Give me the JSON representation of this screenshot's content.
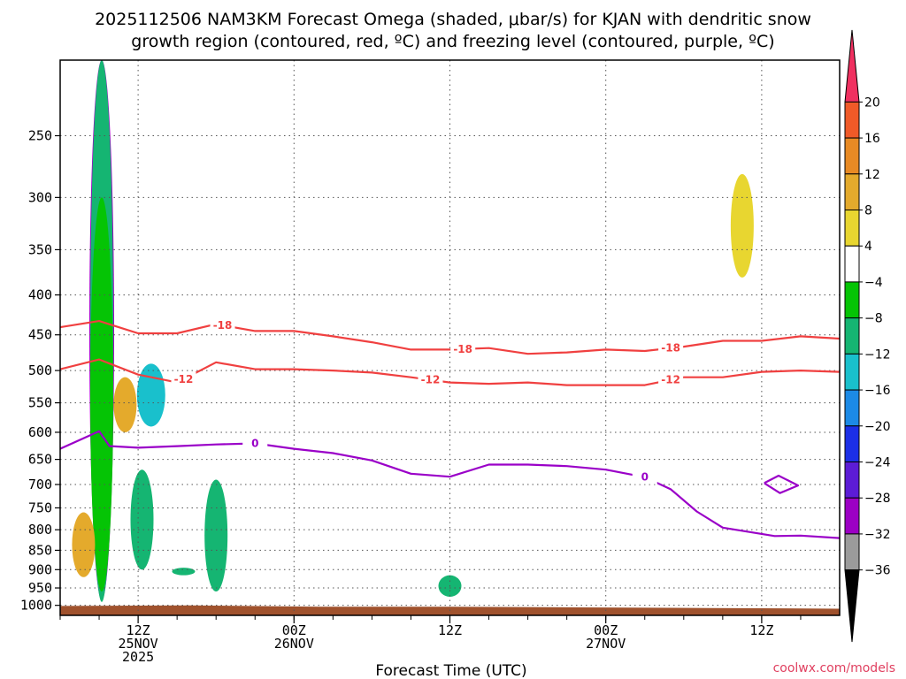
{
  "chart_data": {
    "type": "heatmap",
    "title": "2025112506 NAM3KM Forecast Omega (shaded, μbar/s) for KJAN with dendritic snow",
    "subtitle": "growth region (contoured, red, ºC) and freezing level (contoured, purple, ºC)",
    "xlabel": "Forecast Time (UTC)",
    "ylabel": "",
    "y_axis": {
      "scale": "log",
      "inverted": true,
      "ylim": [
        1030,
        200
      ],
      "unit": "hPa",
      "ticks": [
        250,
        300,
        350,
        400,
        450,
        500,
        550,
        600,
        650,
        700,
        750,
        800,
        850,
        900,
        950,
        1000
      ]
    },
    "x_axis": {
      "xlim": [
        0,
        60
      ],
      "ticks": [
        {
          "hour": 6,
          "lines": [
            "12Z",
            "25NOV",
            "2025"
          ]
        },
        {
          "hour": 18,
          "lines": [
            "00Z",
            "26NOV"
          ]
        },
        {
          "hour": 30,
          "lines": [
            "12Z"
          ]
        },
        {
          "hour": 42,
          "lines": [
            "00Z",
            "27NOV"
          ]
        },
        {
          "hour": 54,
          "lines": [
            "12Z"
          ]
        }
      ],
      "minor_hours": [
        0,
        3,
        6,
        9,
        12,
        15,
        18,
        21,
        24,
        27,
        30,
        33,
        36,
        39,
        42,
        45,
        48,
        51,
        54,
        57
      ]
    },
    "grid": true,
    "colorbar": {
      "unit": "μbar/s",
      "levels": [
        -36,
        -32,
        -28,
        -24,
        -20,
        -16,
        -12,
        -8,
        -4,
        4,
        8,
        12,
        16,
        20
      ],
      "colors": [
        "#000000",
        "#9b9b9b",
        "#9c00c4",
        "#5c1cd6",
        "#1c2fe6",
        "#1c8ae6",
        "#19c0cc",
        "#15b572",
        "#05c405",
        "#ffffff",
        "#e8d630",
        "#e4aa2c",
        "#e88a24",
        "#f05a28",
        "#f03060",
        "#e0207a"
      ],
      "placement": "right"
    },
    "omega_regions": [
      {
        "hour": 3.2,
        "p_top": 205,
        "p_bottom": 975,
        "value": -36
      },
      {
        "hour": 3.2,
        "p_top": 200,
        "p_bottom": 985,
        "value": -28
      },
      {
        "hour": 3.2,
        "p_top": 200,
        "p_bottom": 990,
        "value": -8
      },
      {
        "hour": 3.2,
        "p_top": 300,
        "p_bottom": 960,
        "value": -4
      },
      {
        "hour": 12.0,
        "p_top": 760,
        "p_bottom": 925,
        "value": -36
      },
      {
        "hour": 12.0,
        "p_top": 690,
        "p_bottom": 960,
        "value": -8
      },
      {
        "hour": 7.0,
        "p_top": 490,
        "p_bottom": 590,
        "value": -12
      },
      {
        "hour": 6.3,
        "p_top": 670,
        "p_bottom": 900,
        "value": -8
      },
      {
        "hour": 30.0,
        "p_top": 915,
        "p_bottom": 975,
        "value": -8
      },
      {
        "hour": 9.5,
        "p_top": 895,
        "p_bottom": 915,
        "value": -8
      },
      {
        "hour": 5.0,
        "p_top": 510,
        "p_bottom": 600,
        "value": 12
      },
      {
        "hour": 1.8,
        "p_top": 760,
        "p_bottom": 920,
        "value": 12
      },
      {
        "hour": 5.0,
        "p_top": 200,
        "p_bottom": 300,
        "value": 4
      },
      {
        "hour": 9.8,
        "p_top": 265,
        "p_bottom": 310,
        "value": 4
      },
      {
        "hour": 53.0,
        "p_top": 240,
        "p_bottom": 520,
        "value": 4
      },
      {
        "hour": 52.5,
        "p_top": 280,
        "p_bottom": 380,
        "value": 8
      },
      {
        "hour": 47.0,
        "p_top": 375,
        "p_bottom": 470,
        "value": 4
      },
      {
        "hour": 42.0,
        "p_top": 320,
        "p_bottom": 350,
        "value": 4
      },
      {
        "hour": 59.0,
        "p_top": 300,
        "p_bottom": 600,
        "value": 4
      },
      {
        "hour": 55.0,
        "p_top": 470,
        "p_bottom": 560,
        "value": 4
      },
      {
        "hour": 49.0,
        "p_top": 885,
        "p_bottom": 905,
        "value": 4
      },
      {
        "hour": 55.5,
        "p_top": 890,
        "p_bottom": 905,
        "value": 4
      }
    ],
    "series": [
      {
        "name": "-18",
        "color": "#f04040",
        "style": "dendritic",
        "x": [
          0,
          3,
          6,
          9,
          12,
          15,
          18,
          21,
          24,
          27,
          30,
          33,
          36,
          39,
          42,
          45,
          48,
          51,
          54,
          57,
          60
        ],
        "y": [
          440,
          432,
          448,
          448,
          436,
          445,
          445,
          452,
          460,
          470,
          470,
          468,
          476,
          474,
          470,
          472,
          466,
          458,
          458,
          452,
          455
        ],
        "labels_at": [
          12.5,
          31,
          47
        ]
      },
      {
        "name": "-12",
        "color": "#f04040",
        "style": "dendritic",
        "x": [
          0,
          3,
          6,
          9,
          12,
          15,
          18,
          21,
          24,
          27,
          30,
          33,
          36,
          39,
          42,
          45,
          48,
          51,
          54,
          57,
          60
        ],
        "y": [
          498,
          484,
          506,
          518,
          488,
          498,
          498,
          500,
          503,
          510,
          518,
          520,
          518,
          522,
          522,
          522,
          510,
          510,
          502,
          500,
          502
        ],
        "labels_at": [
          9.5,
          28.5,
          47
        ]
      },
      {
        "name": "0",
        "color": "#9a00c8",
        "style": "freezing",
        "x": [
          0,
          3,
          3.8,
          6,
          9,
          12,
          15,
          18,
          21,
          24,
          27,
          30,
          33,
          36,
          39,
          42,
          45,
          47,
          49,
          51,
          53,
          55,
          57,
          60
        ],
        "y": [
          630,
          598,
          625,
          628,
          625,
          622,
          620,
          630,
          638,
          652,
          678,
          684,
          660,
          660,
          663,
          670,
          685,
          710,
          758,
          795,
          805,
          815,
          814,
          820
        ],
        "labels_at": [
          15,
          45
        ]
      },
      {
        "name": "0",
        "color": "#9a00c8",
        "style": "freezing-loop",
        "x": [
          54.2,
          55.3,
          56.8,
          55.4,
          54.2
        ],
        "y": [
          697,
          682,
          702,
          718,
          697
        ],
        "labels_at": []
      }
    ],
    "label_values": {
      "dendritic_upper": "-18",
      "dendritic_lower": "-12",
      "freezing": "0"
    },
    "surface": {
      "color": "#a0522d",
      "p_top": [
        1002,
        1000,
        1004,
        1004,
        1006,
        1008,
        1010
      ]
    }
  },
  "credit": "coolwx.com/models",
  "credit_color": "#e04060"
}
